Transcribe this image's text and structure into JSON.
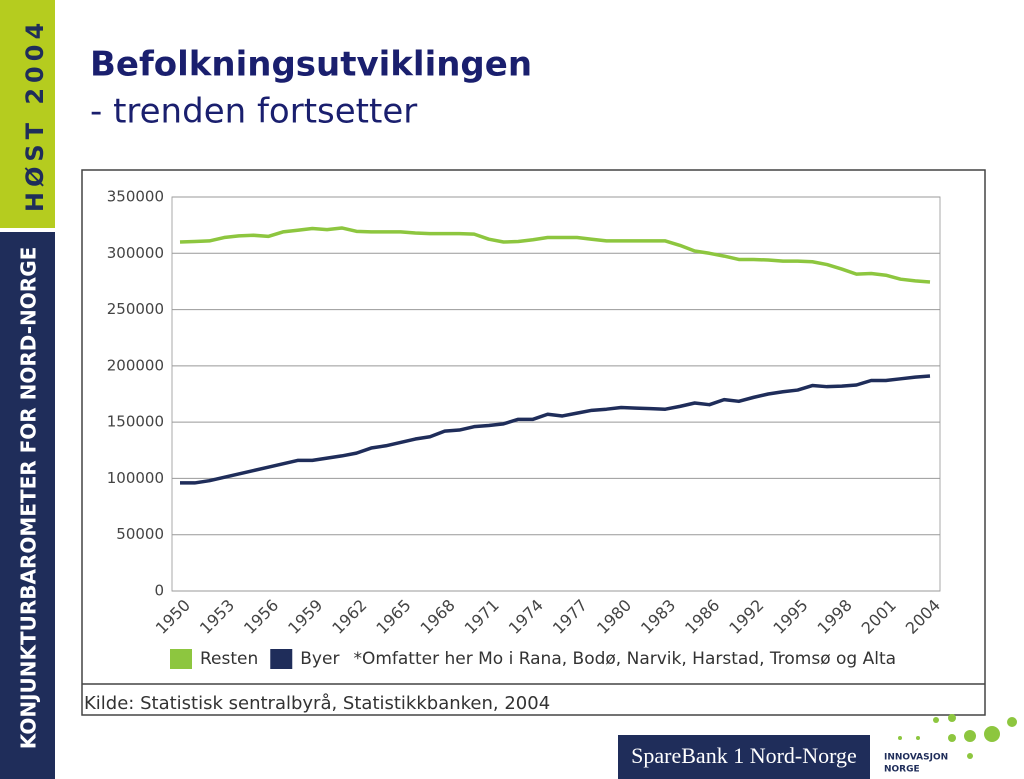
{
  "slide": {
    "side_top": "HØST 2004",
    "side_bottom": "KONJUNKTURBAROMETER FOR NORD-NORGE",
    "title": "Befolkningsutviklingen",
    "subtitle": "- trenden fortsetter"
  },
  "chart_data": {
    "type": "line",
    "categories": [
      "1950",
      null,
      null,
      "1953",
      null,
      null,
      "1956",
      null,
      null,
      "1959",
      null,
      null,
      "1962",
      null,
      null,
      "1965",
      null,
      null,
      "1968",
      null,
      null,
      "1971",
      null,
      null,
      "1974",
      null,
      null,
      "1977",
      null,
      null,
      "1980",
      null,
      null,
      "1983",
      null,
      null,
      "1986",
      null,
      null,
      "1992",
      null,
      null,
      "1995",
      null,
      null,
      "1998",
      null,
      null,
      "2001",
      null,
      null,
      "2004"
    ],
    "series": [
      {
        "name": "Resten",
        "color": "#8dc63f",
        "values": [
          310000,
          310500,
          311000,
          314000,
          315500,
          316000,
          315000,
          319000,
          320500,
          322000,
          321000,
          322500,
          319500,
          319000,
          319000,
          319000,
          318000,
          317500,
          317500,
          317500,
          317000,
          312500,
          310000,
          310500,
          312000,
          314000,
          314000,
          314000,
          312500,
          311000,
          311000,
          311000,
          311000,
          311000,
          307000,
          302000,
          300000,
          297500,
          294500,
          294500,
          294000,
          293000,
          293000,
          292500,
          290000,
          286000,
          281500,
          282000,
          280500,
          277000,
          275500,
          274500
        ]
      },
      {
        "name": "Byer",
        "color": "#1f2d5a",
        "values": [
          96000,
          96000,
          98000,
          101000,
          104000,
          107000,
          110000,
          113000,
          116000,
          116000,
          118000,
          120000,
          122500,
          127000,
          129000,
          132000,
          135000,
          137000,
          142000,
          143000,
          146000,
          147000,
          148500,
          152500,
          152500,
          157000,
          155500,
          158000,
          160500,
          161500,
          163000,
          162500,
          162000,
          161500,
          164000,
          167000,
          165500,
          170000,
          168500,
          172000,
          175000,
          177000,
          178500,
          182500,
          181500,
          182000,
          183000,
          187000,
          187000,
          188500,
          190000,
          191000
        ]
      }
    ],
    "ylim": [
      0,
      350000
    ],
    "yticks": [
      0,
      50000,
      100000,
      150000,
      200000,
      250000,
      300000,
      350000
    ],
    "grid": true,
    "note": "*Omfatter her Mo i Rana, Bodø, Narvik, Harstad, Tromsø og Alta",
    "source": "Kilde: Statistisk sentralbyrå, Statistikkbanken, 2004"
  },
  "logos": {
    "sparebank": "SpareBank 1 Nord-Norge",
    "innovasjon_1": "INNOVASJON",
    "innovasjon_2": "NORGE"
  }
}
